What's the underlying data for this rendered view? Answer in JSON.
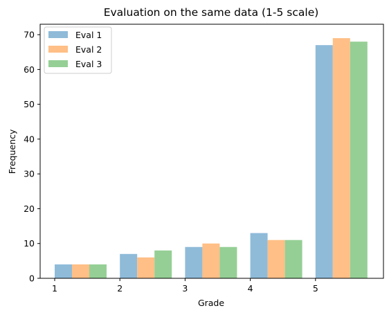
{
  "chart_data": {
    "type": "bar",
    "title": "Evaluation on the same data (1-5 scale)",
    "xlabel": "Grade",
    "ylabel": "Frequency",
    "categories": [
      "1",
      "2",
      "3",
      "4",
      "5"
    ],
    "x_ticks": [
      "1",
      "2",
      "3",
      "4",
      "5"
    ],
    "y_ticks": [
      0,
      10,
      20,
      30,
      40,
      50,
      60,
      70
    ],
    "ylim": [
      0,
      73
    ],
    "grid": false,
    "legend_position": "top-left",
    "series": [
      {
        "name": "Eval 1",
        "color": "#8fbbd9",
        "values": [
          4,
          7,
          9,
          13,
          67
        ]
      },
      {
        "name": "Eval 2",
        "color": "#ffbf86",
        "values": [
          4,
          6,
          10,
          11,
          69
        ]
      },
      {
        "name": "Eval 3",
        "color": "#95cf95",
        "values": [
          4,
          8,
          9,
          11,
          68
        ]
      }
    ]
  }
}
